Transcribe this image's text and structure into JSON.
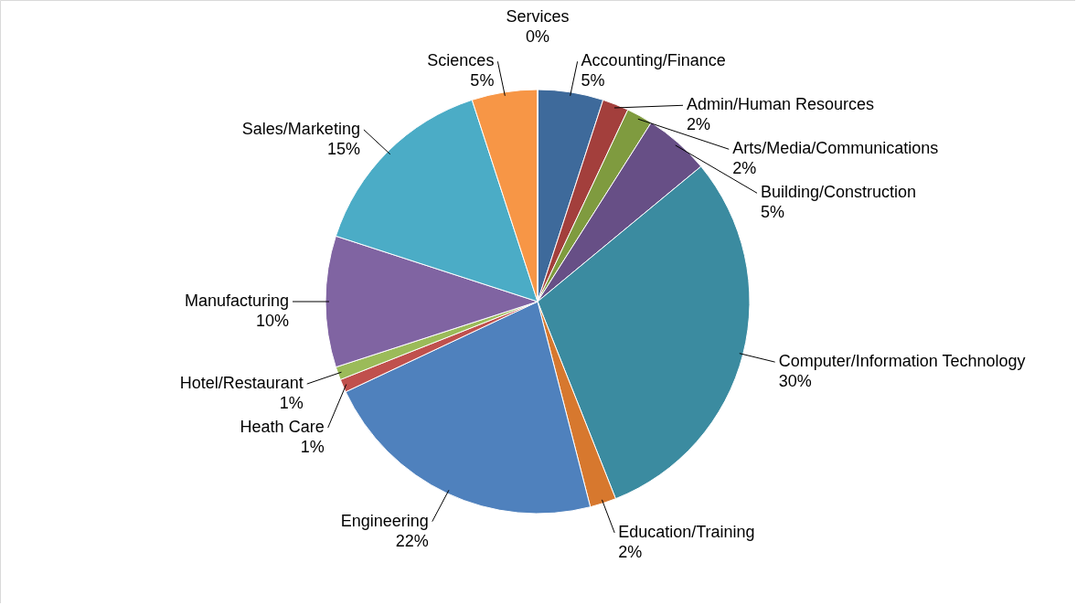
{
  "chart_data": {
    "type": "pie",
    "categories": [
      "Accounting/Finance",
      "Admin/Human Resources",
      "Arts/Media/Communications",
      "Building/Construction",
      "Computer/Information Technology",
      "Education/Training",
      "Engineering",
      "Heath Care",
      "Hotel/Restaurant",
      "Manufacturing",
      "Sales/Marketing",
      "Sciences",
      "Services"
    ],
    "values": [
      5,
      2,
      2,
      5,
      30,
      2,
      22,
      1,
      1,
      10,
      15,
      5,
      0
    ],
    "value_labels": [
      "5%",
      "2%",
      "2%",
      "5%",
      "30%",
      "2%",
      "22%",
      "1%",
      "1%",
      "10%",
      "15%",
      "5%",
      "0%"
    ],
    "colors": [
      "#3e6a9b",
      "#a33f3c",
      "#7f9b3f",
      "#674f86",
      "#3b8ba0",
      "#d7782e",
      "#4f81bd",
      "#c0504d",
      "#9bbb59",
      "#8064a2",
      "#4bacc6",
      "#f79646",
      "#2c4d75"
    ]
  }
}
